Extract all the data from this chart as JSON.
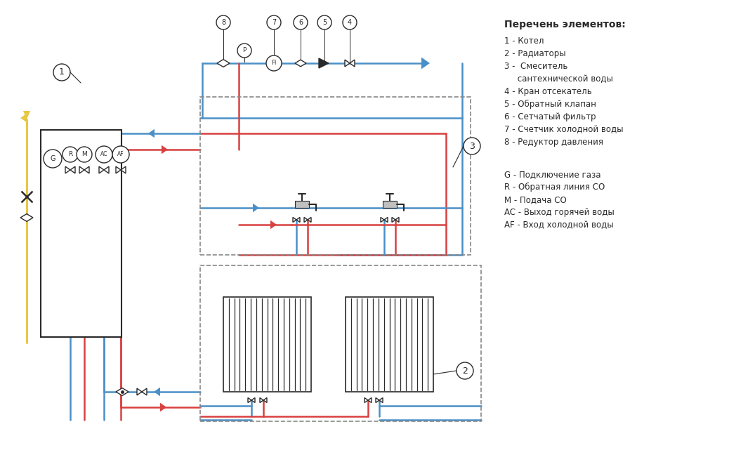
{
  "bg_color": "#ffffff",
  "red": "#d94040",
  "blue": "#4a90c8",
  "yellow": "#e8c840",
  "dark": "#2a2a2a",
  "gray": "#888888",
  "legend_title": "Перечень элементов:",
  "legend_num": [
    "1 - Котел",
    "2 - Радиаторы",
    "3 -  Смеситель",
    "     сантехнической воды",
    "4 - Кран отсекатель",
    "5 - Обратный клапан",
    "6 - Сетчатый фильтр",
    "7 - Счетчик холодной воды",
    "8 - Редуктор давления"
  ],
  "legend_let": [
    "G - Подключение газа",
    "R - Обратная линия СО",
    "M - Подача СО",
    "AC - Выход горячей воды",
    "AF - Вход холодной воды"
  ]
}
